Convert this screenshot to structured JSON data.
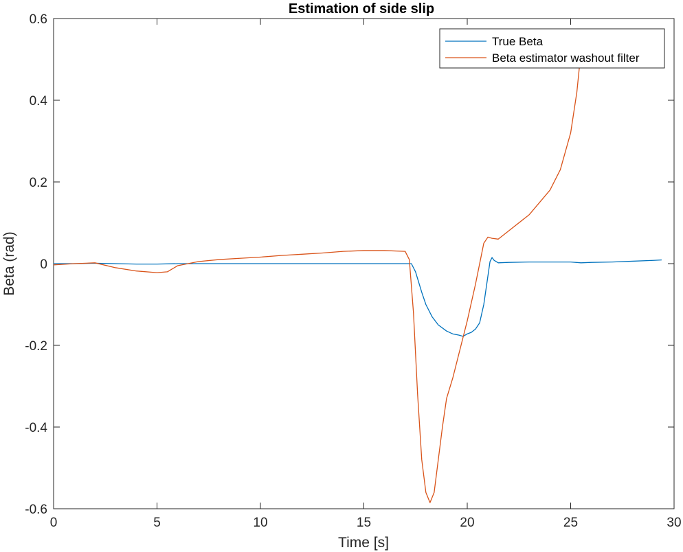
{
  "chart_data": {
    "type": "line",
    "title": "Estimation of side slip",
    "xlabel": "Time [s]",
    "ylabel": "Beta (rad)",
    "xlim": [
      0,
      30
    ],
    "ylim": [
      -0.6,
      0.6
    ],
    "xticks": [
      0,
      5,
      10,
      15,
      20,
      25,
      30
    ],
    "yticks": [
      -0.6,
      -0.4,
      -0.2,
      0,
      0.2,
      0.4,
      0.6
    ],
    "xtick_labels": [
      "0",
      "5",
      "10",
      "15",
      "20",
      "25",
      "30"
    ],
    "ytick_labels": [
      "-0.6",
      "-0.4",
      "-0.2",
      "0",
      "0.2",
      "0.4",
      "0.6"
    ],
    "grid": false,
    "legend_position": "top-right",
    "series": [
      {
        "name": "True Beta",
        "color": "#0072BD",
        "x": [
          0,
          1,
          2,
          3,
          4,
          5,
          6,
          7,
          8,
          9,
          10,
          11,
          12,
          13,
          14,
          15,
          16,
          17,
          17.3,
          17.5,
          17.8,
          18.0,
          18.3,
          18.6,
          19.0,
          19.3,
          19.6,
          19.8,
          20.0,
          20.2,
          20.4,
          20.6,
          20.8,
          21.0,
          21.1,
          21.2,
          21.3,
          21.5,
          22,
          23,
          24,
          25,
          25.5,
          26,
          27,
          28,
          29,
          29.4
        ],
        "y": [
          0,
          0,
          0.001,
          0,
          -0.001,
          -0.001,
          0,
          0,
          0,
          0,
          0,
          0,
          0,
          0,
          0,
          0,
          0,
          0,
          0,
          -0.02,
          -0.07,
          -0.1,
          -0.13,
          -0.15,
          -0.165,
          -0.172,
          -0.175,
          -0.178,
          -0.172,
          -0.168,
          -0.16,
          -0.145,
          -0.1,
          -0.03,
          0.005,
          0.015,
          0.008,
          0.002,
          0.003,
          0.004,
          0.004,
          0.004,
          0.002,
          0.003,
          0.004,
          0.006,
          0.008,
          0.009
        ]
      },
      {
        "name": "Beta estimator washout filter",
        "color": "#D95319",
        "x": [
          0,
          1,
          2,
          3,
          4,
          5,
          5.5,
          6,
          7,
          8,
          9,
          10,
          11,
          12,
          13,
          14,
          15,
          16,
          17,
          17.2,
          17.4,
          17.6,
          17.8,
          18.0,
          18.2,
          18.4,
          18.6,
          18.8,
          19.0,
          19.3,
          19.6,
          20.0,
          20.4,
          20.8,
          21.0,
          21.2,
          21.5,
          22,
          23,
          24,
          24.5,
          25,
          25.3,
          25.5
        ],
        "y": [
          -0.003,
          0,
          0.002,
          -0.01,
          -0.018,
          -0.022,
          -0.02,
          -0.005,
          0.005,
          0.01,
          0.013,
          0.016,
          0.02,
          0.023,
          0.026,
          0.03,
          0.032,
          0.032,
          0.03,
          0.01,
          -0.12,
          -0.32,
          -0.48,
          -0.56,
          -0.585,
          -0.56,
          -0.48,
          -0.4,
          -0.33,
          -0.28,
          -0.22,
          -0.14,
          -0.05,
          0.05,
          0.065,
          0.062,
          0.06,
          0.08,
          0.12,
          0.18,
          0.23,
          0.32,
          0.42,
          0.52
        ]
      }
    ]
  }
}
